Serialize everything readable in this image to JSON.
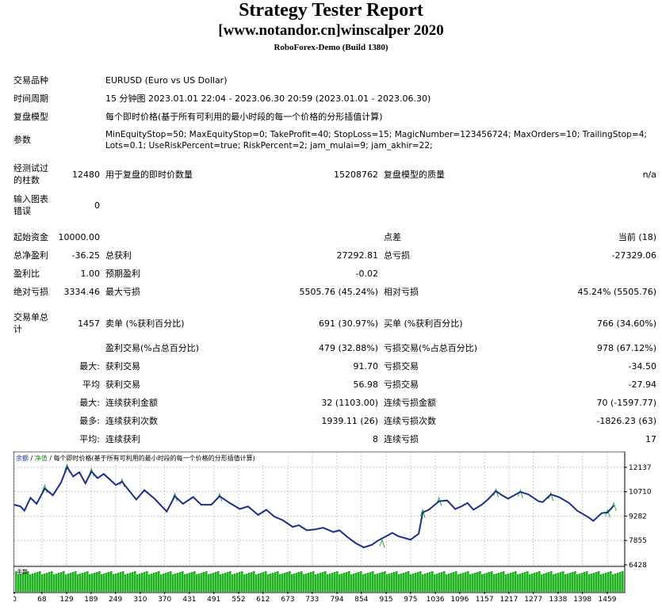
{
  "report": {
    "title": "Strategy Tester Report",
    "subtitle": "[www.notandor.cn]winscalper 2020",
    "server": "RoboForex-Demo (Build 1380)"
  },
  "info": {
    "symbol_label": "交易品种",
    "symbol_value": "EURUSD (Euro vs US Dollar)",
    "period_label": "时间周期",
    "period_value": "15 分钟图 2023.01.01 22:04 - 2023.06.30 20:59 (2023.01.01 - 2023.06.30)",
    "model_label": "复盘模型",
    "model_value": "每个即时价格(基于所有可利用的最小时段的每一个价格的分形插值计算)",
    "params_label": "参数",
    "params_line1": "MinEquityStop=50; MaxEquityStop=0; TakeProfit=40; StopLoss=15; MagicNumber=123456724; MaxOrders=10; TrailingStop=4;",
    "params_line2": "Lots=0.1; UseRiskPercent=true; RiskPercent=2; jam_mulai=9; jam_akhir=22;"
  },
  "bars": {
    "bars_label_1": "经测试过",
    "bars_label_2": "的柱数",
    "bars_value": "12480",
    "ticks_label": "用于复盘的即时价数量",
    "ticks_value": "15208762",
    "quality_label": "复盘模型的质量",
    "quality_value": "n/a",
    "errors_label_1": "输入图表",
    "errors_label_2": "错误",
    "errors_value": "0"
  },
  "stats": {
    "deposit_label": "起始资金",
    "deposit_value": "10000.00",
    "spread_label": "点差",
    "spread_value": "当前 (18)",
    "net_label": "总净盈利",
    "net_value": "-36.25",
    "gross_profit_label": "总获利",
    "gross_profit_value": "27292.81",
    "gross_loss_label": "总亏损",
    "gross_loss_value": "-27329.06",
    "pf_label": "盈利比",
    "pf_value": "1.00",
    "payoff_label": "预期盈利",
    "payoff_value": "-0.02",
    "abs_dd_label": "绝对亏损",
    "abs_dd_value": "3334.46",
    "max_dd_label": "最大亏损",
    "max_dd_value": "5505.76 (45.24%)",
    "rel_dd_label": "相对亏损",
    "rel_dd_value": "45.24% (5505.76)"
  },
  "trades": {
    "total_label_1": "交易单总",
    "total_label_2": "计",
    "total_value": "1457",
    "short_label": "卖单 (%获利百分比)",
    "short_value": "691 (30.97%)",
    "long_label": "买单 (%获利百分比)",
    "long_value": "766 (34.60%)",
    "win_label": "盈利交易(%占总百分比)",
    "win_value": "479 (32.88%)",
    "loss_label": "亏损交易(%占总百分比)",
    "loss_value": "978 (67.12%)",
    "largest_prefix": "最大:",
    "largest_win_label": "获利交易",
    "largest_win_value": "91.70",
    "largest_loss_label": "亏损交易",
    "largest_loss_value": "-34.50",
    "avg_prefix": "平均",
    "avg_win_label": "获利交易",
    "avg_win_value": "56.98",
    "avg_loss_label": "亏损交易",
    "avg_loss_value": "-27.94",
    "maxcons_prefix": "最大:",
    "maxcons_win_label": "连续获利金额",
    "maxcons_win_value": "32 (1103.00)",
    "maxcons_loss_label": "连续亏损金额",
    "maxcons_loss_value": "70 (-1597.77)",
    "maxamt_prefix": "最多:",
    "maxamt_win_label": "连续获利次数",
    "maxamt_win_value": "1939.11 (26)",
    "maxamt_loss_label": "连续亏损次数",
    "maxamt_loss_value": "-1826.23 (63)",
    "avgcons_prefix": "平均:",
    "avgcons_win_label": "连续获利",
    "avgcons_win_value": "8",
    "avgcons_loss_label": "连续亏损",
    "avgcons_loss_value": "17"
  },
  "chart_data": {
    "type": "line",
    "legend_balance": "余额",
    "legend_equity": "净值",
    "legend_text": "每个即时价格(基于所有可利用的最小时段的每一个价格的分形插值计算)",
    "lots_label": "手数",
    "y_ticks": [
      "12137",
      "10710",
      "9282",
      "7855",
      "6428"
    ],
    "x_ticks": [
      "0",
      "68",
      "129",
      "189",
      "249",
      "310",
      "370",
      "431",
      "491",
      "552",
      "612",
      "673",
      "733",
      "794",
      "854",
      "915",
      "975",
      "1036",
      "1096",
      "1157",
      "1217",
      "1277",
      "1338",
      "1398",
      "1459"
    ],
    "ylim": [
      6428,
      12550
    ],
    "xlim": [
      0,
      1500
    ],
    "balance_color": "#1c2e8c",
    "equity_color": "#2ea82e",
    "lots_color": "#1fb21f",
    "balance": [
      [
        0,
        9950
      ],
      [
        15,
        9850
      ],
      [
        25,
        9600
      ],
      [
        40,
        10350
      ],
      [
        55,
        10000
      ],
      [
        75,
        10900
      ],
      [
        95,
        10500
      ],
      [
        115,
        11250
      ],
      [
        130,
        12150
      ],
      [
        145,
        11600
      ],
      [
        160,
        11850
      ],
      [
        175,
        11200
      ],
      [
        190,
        11900
      ],
      [
        205,
        11500
      ],
      [
        220,
        11750
      ],
      [
        250,
        11100
      ],
      [
        265,
        11300
      ],
      [
        300,
        10250
      ],
      [
        320,
        10800
      ],
      [
        345,
        10300
      ],
      [
        375,
        9550
      ],
      [
        395,
        10450
      ],
      [
        415,
        10000
      ],
      [
        440,
        10400
      ],
      [
        460,
        9950
      ],
      [
        485,
        9950
      ],
      [
        505,
        10450
      ],
      [
        530,
        10050
      ],
      [
        555,
        9700
      ],
      [
        575,
        9850
      ],
      [
        600,
        9350
      ],
      [
        620,
        9650
      ],
      [
        640,
        9250
      ],
      [
        660,
        9050
      ],
      [
        685,
        8650
      ],
      [
        700,
        8750
      ],
      [
        720,
        8450
      ],
      [
        740,
        8500
      ],
      [
        760,
        8600
      ],
      [
        785,
        8350
      ],
      [
        800,
        8450
      ],
      [
        820,
        8050
      ],
      [
        840,
        7700
      ],
      [
        860,
        7450
      ],
      [
        880,
        7600
      ],
      [
        895,
        7850
      ],
      [
        915,
        8100
      ],
      [
        930,
        8300
      ],
      [
        945,
        8100
      ],
      [
        975,
        7900
      ],
      [
        995,
        8250
      ],
      [
        1005,
        9500
      ],
      [
        1020,
        9650
      ],
      [
        1045,
        10150
      ],
      [
        1065,
        10200
      ],
      [
        1085,
        9700
      ],
      [
        1100,
        9850
      ],
      [
        1115,
        10050
      ],
      [
        1130,
        9650
      ],
      [
        1150,
        9950
      ],
      [
        1165,
        10250
      ],
      [
        1185,
        10750
      ],
      [
        1200,
        10500
      ],
      [
        1215,
        10300
      ],
      [
        1245,
        10700
      ],
      [
        1265,
        10550
      ],
      [
        1290,
        10150
      ],
      [
        1300,
        10100
      ],
      [
        1320,
        10550
      ],
      [
        1340,
        10400
      ],
      [
        1365,
        10050
      ],
      [
        1385,
        9600
      ],
      [
        1410,
        9250
      ],
      [
        1425,
        9000
      ],
      [
        1445,
        9450
      ],
      [
        1460,
        9500
      ],
      [
        1475,
        9900
      ]
    ],
    "equity_spikes": [
      [
        75,
        11100
      ],
      [
        130,
        12300
      ],
      [
        190,
        12050
      ],
      [
        265,
        11450
      ],
      [
        395,
        10600
      ],
      [
        505,
        10600
      ],
      [
        905,
        7900
      ],
      [
        1005,
        9650
      ],
      [
        1045,
        10350
      ],
      [
        1185,
        10850
      ],
      [
        1245,
        10800
      ],
      [
        1320,
        10650
      ],
      [
        1460,
        9650
      ],
      [
        1475,
        10050
      ]
    ]
  }
}
